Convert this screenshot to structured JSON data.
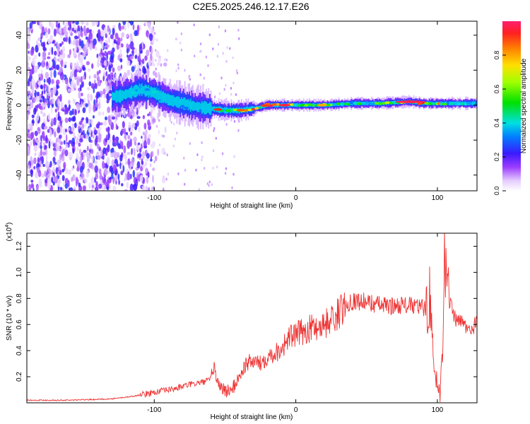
{
  "title": "C2E5.2025.246.12.17.E26",
  "chart_data": [
    {
      "type": "heatmap",
      "title": "C2E5.2025.246.12.17.E26",
      "xlabel": "Height of straight line (km)",
      "ylabel": "Frequency (Hz)",
      "xlim": [
        -190,
        128
      ],
      "ylim": [
        -49,
        48
      ],
      "xticks": [
        -100,
        0,
        100
      ],
      "xtick_labels": [
        "-100",
        "0",
        "100"
      ],
      "yticks": [
        -40,
        -20,
        0,
        20,
        40
      ],
      "ytick_labels": [
        "-40",
        "-20",
        "0",
        "20",
        "40"
      ],
      "colorbar": {
        "label": "Normalized spectral amplitude",
        "range": [
          0,
          1
        ],
        "ticks": [
          0.0,
          0.2,
          0.4,
          0.6,
          0.8
        ],
        "tick_labels": [
          "0.0",
          "0.2",
          "0.4",
          "0.6",
          "0.8"
        ]
      },
      "signal_ridge": {
        "x": [
          -125,
          -110,
          -100,
          -90,
          -80,
          -70,
          -60,
          -50,
          -40,
          -30,
          -20,
          -10,
          0,
          20,
          40,
          60,
          80,
          90,
          100,
          110,
          128
        ],
        "frequency": [
          5,
          9,
          7,
          3,
          1,
          -1,
          -2,
          -3,
          -3,
          -2,
          0,
          0,
          0,
          0,
          1,
          1,
          2,
          1,
          1,
          1,
          1
        ],
        "peak_amplitude": [
          0.35,
          0.45,
          0.4,
          0.35,
          0.3,
          0.3,
          0.35,
          0.55,
          0.8,
          0.85,
          0.9,
          0.95,
          0.7,
          0.75,
          0.5,
          0.55,
          0.98,
          0.9,
          0.6,
          0.45,
          0.45
        ]
      }
    },
    {
      "type": "line",
      "xlabel": "Height of straight line (km)",
      "ylabel": "SNR (10 * v/v)",
      "yscale_label": "(x10^4)",
      "xlim": [
        -190,
        128
      ],
      "ylim": [
        0,
        1.3
      ],
      "xticks": [
        -100,
        0,
        100
      ],
      "xtick_labels": [
        "-100",
        "0",
        "100"
      ],
      "yticks": [
        0.2,
        0.4,
        0.6,
        0.8,
        1.0,
        1.2
      ],
      "ytick_labels": [
        "0.2",
        "0.4",
        "0.6",
        "0.8",
        "1.0",
        "1.2"
      ],
      "series": [
        {
          "name": "SNR",
          "color": "#ee3333",
          "x": [
            -190,
            -160,
            -130,
            -115,
            -105,
            -95,
            -85,
            -75,
            -65,
            -60,
            -58,
            -55,
            -50,
            -45,
            -40,
            -35,
            -30,
            -25,
            -20,
            -15,
            -10,
            -5,
            0,
            10,
            20,
            30,
            38,
            45,
            55,
            65,
            75,
            85,
            92,
            95,
            97,
            100,
            102,
            104,
            105,
            108,
            112,
            115,
            118,
            122,
            125,
            128
          ],
          "y": [
            0.02,
            0.02,
            0.03,
            0.05,
            0.07,
            0.09,
            0.11,
            0.14,
            0.16,
            0.18,
            0.28,
            0.15,
            0.09,
            0.1,
            0.2,
            0.3,
            0.32,
            0.3,
            0.36,
            0.38,
            0.42,
            0.5,
            0.52,
            0.57,
            0.6,
            0.68,
            0.78,
            0.78,
            0.76,
            0.74,
            0.75,
            0.74,
            0.72,
            0.85,
            0.3,
            0.15,
            0.05,
            0.55,
            1.3,
            0.8,
            0.65,
            0.62,
            0.62,
            0.55,
            0.55,
            0.68
          ]
        }
      ]
    }
  ]
}
